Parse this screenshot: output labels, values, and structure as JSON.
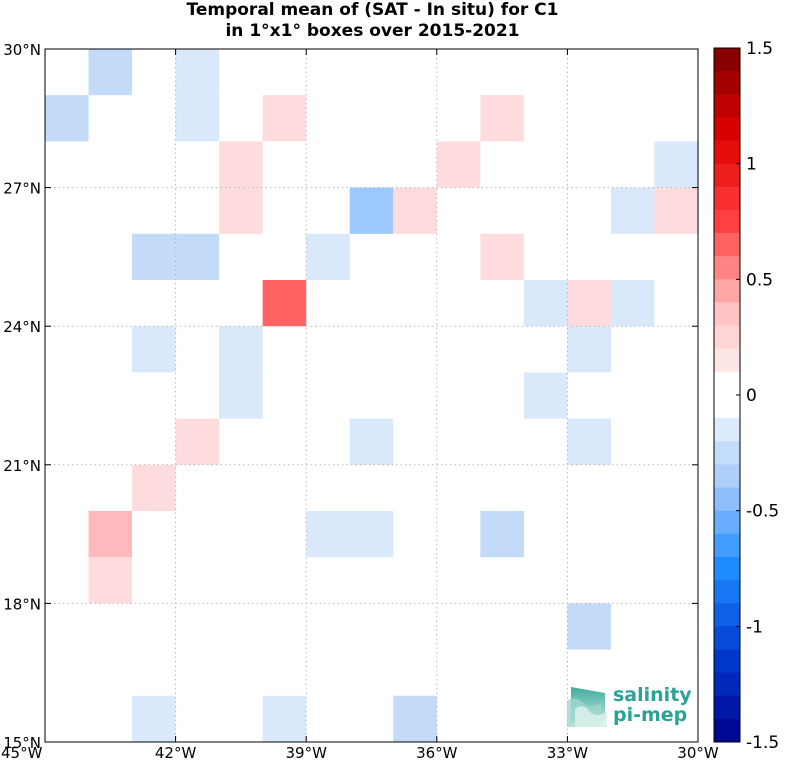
{
  "title_line1": "Temporal mean of (SAT - In situ) for C1",
  "title_line2": "in 1°x1° boxes over 2015-2021",
  "logo": {
    "line1": "salinity",
    "line2": "pi-mep",
    "color": "#2aa394"
  },
  "chart_data": {
    "type": "heatmap",
    "xlim": [
      -45,
      -30
    ],
    "ylim": [
      15,
      30
    ],
    "x_ticks": [
      -45,
      -42,
      -39,
      -36,
      -33,
      -30
    ],
    "x_tick_labels": [
      "45°W",
      "42°W",
      "39°W",
      "36°W",
      "33°W",
      "30°W"
    ],
    "y_ticks": [
      15,
      18,
      21,
      24,
      27,
      30
    ],
    "y_tick_labels": [
      "15°N",
      "18°N",
      "21°N",
      "24°N",
      "27°N",
      "30°N"
    ],
    "grid": true,
    "colorbar": {
      "range": [
        -1.5,
        1.5
      ],
      "levels": 30,
      "ticks": [
        1.5,
        1,
        0.5,
        0,
        -0.5,
        -1,
        -1.5
      ],
      "tick_labels": [
        "1.5",
        "1",
        "0.5",
        "0",
        "-0.5",
        "-1",
        "-1.5"
      ]
    },
    "cells": [
      {
        "lon": -44,
        "lat": 29,
        "value": -0.25
      },
      {
        "lon": -45,
        "lat": 28,
        "value": -0.25
      },
      {
        "lon": -42,
        "lat": 29,
        "value": -0.15
      },
      {
        "lon": -42,
        "lat": 28,
        "value": -0.15
      },
      {
        "lon": -40,
        "lat": 28,
        "value": 0.15
      },
      {
        "lon": -35,
        "lat": 28,
        "value": 0.15
      },
      {
        "lon": -41,
        "lat": 27,
        "value": 0.15
      },
      {
        "lon": -41,
        "lat": 26,
        "value": 0.15
      },
      {
        "lon": -36,
        "lat": 27,
        "value": 0.15
      },
      {
        "lon": -31,
        "lat": 27,
        "value": -0.15
      },
      {
        "lon": -38,
        "lat": 26,
        "value": -0.4
      },
      {
        "lon": -37,
        "lat": 26,
        "value": 0.15
      },
      {
        "lon": -32,
        "lat": 26,
        "value": -0.15
      },
      {
        "lon": -31,
        "lat": 26,
        "value": 0.15
      },
      {
        "lon": -43,
        "lat": 25,
        "value": -0.25
      },
      {
        "lon": -42,
        "lat": 25,
        "value": -0.25
      },
      {
        "lon": -39,
        "lat": 25,
        "value": -0.15
      },
      {
        "lon": -35,
        "lat": 25,
        "value": 0.15
      },
      {
        "lon": -40,
        "lat": 24,
        "value": 0.65
      },
      {
        "lon": -34,
        "lat": 24,
        "value": -0.15
      },
      {
        "lon": -33,
        "lat": 24,
        "value": 0.15
      },
      {
        "lon": -32,
        "lat": 24,
        "value": -0.15
      },
      {
        "lon": -43,
        "lat": 23,
        "value": -0.15
      },
      {
        "lon": -41,
        "lat": 23,
        "value": -0.15
      },
      {
        "lon": -41,
        "lat": 22,
        "value": -0.15
      },
      {
        "lon": -33,
        "lat": 23,
        "value": -0.15
      },
      {
        "lon": -34,
        "lat": 22,
        "value": -0.15
      },
      {
        "lon": -42,
        "lat": 21,
        "value": 0.15
      },
      {
        "lon": -38,
        "lat": 21,
        "value": -0.15
      },
      {
        "lon": -33,
        "lat": 21,
        "value": -0.15
      },
      {
        "lon": -43,
        "lat": 20,
        "value": 0.15
      },
      {
        "lon": -44,
        "lat": 19,
        "value": 0.25
      },
      {
        "lon": -44,
        "lat": 18,
        "value": 0.15
      },
      {
        "lon": -39,
        "lat": 19,
        "value": -0.15
      },
      {
        "lon": -38,
        "lat": 19,
        "value": -0.15
      },
      {
        "lon": -35,
        "lat": 19,
        "value": -0.25
      },
      {
        "lon": -33,
        "lat": 17,
        "value": -0.25
      },
      {
        "lon": -43,
        "lat": 15,
        "value": -0.15
      },
      {
        "lon": -40,
        "lat": 15,
        "value": -0.15
      },
      {
        "lon": -37,
        "lat": 15,
        "value": -0.25
      }
    ]
  }
}
